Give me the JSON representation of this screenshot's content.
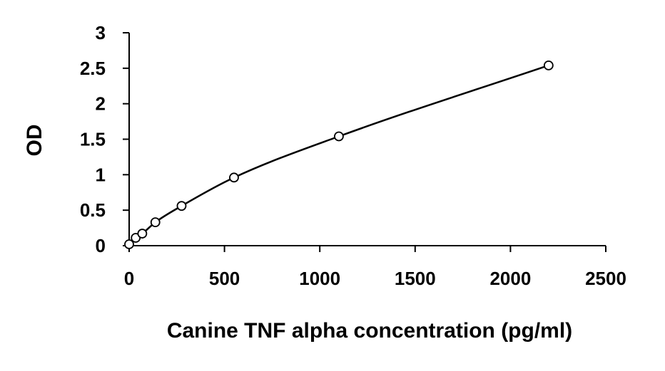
{
  "chart_data": {
    "type": "scatter",
    "title": "",
    "xlabel": "Canine TNF alpha concentration (pg/ml)",
    "ylabel": "OD",
    "xlim": [
      0,
      2500
    ],
    "ylim": [
      0,
      3
    ],
    "xticks": [
      "0",
      "500",
      "1000",
      "1500",
      "2000",
      "2500"
    ],
    "yticks": [
      "0",
      "0.5",
      "1",
      "1.5",
      "2",
      "2.5",
      "3"
    ],
    "grid": false,
    "legend": "none",
    "marker": "open-circle",
    "fit": "curve",
    "series": [
      {
        "x": [
          0,
          34.4,
          68.8,
          137.5,
          275,
          550,
          1100,
          2200
        ],
        "y": [
          0.02,
          0.11,
          0.17,
          0.33,
          0.56,
          0.96,
          1.54,
          2.54
        ]
      }
    ],
    "colors": {
      "axis": "#000000",
      "marker": "#000000",
      "line": "#000000"
    }
  }
}
